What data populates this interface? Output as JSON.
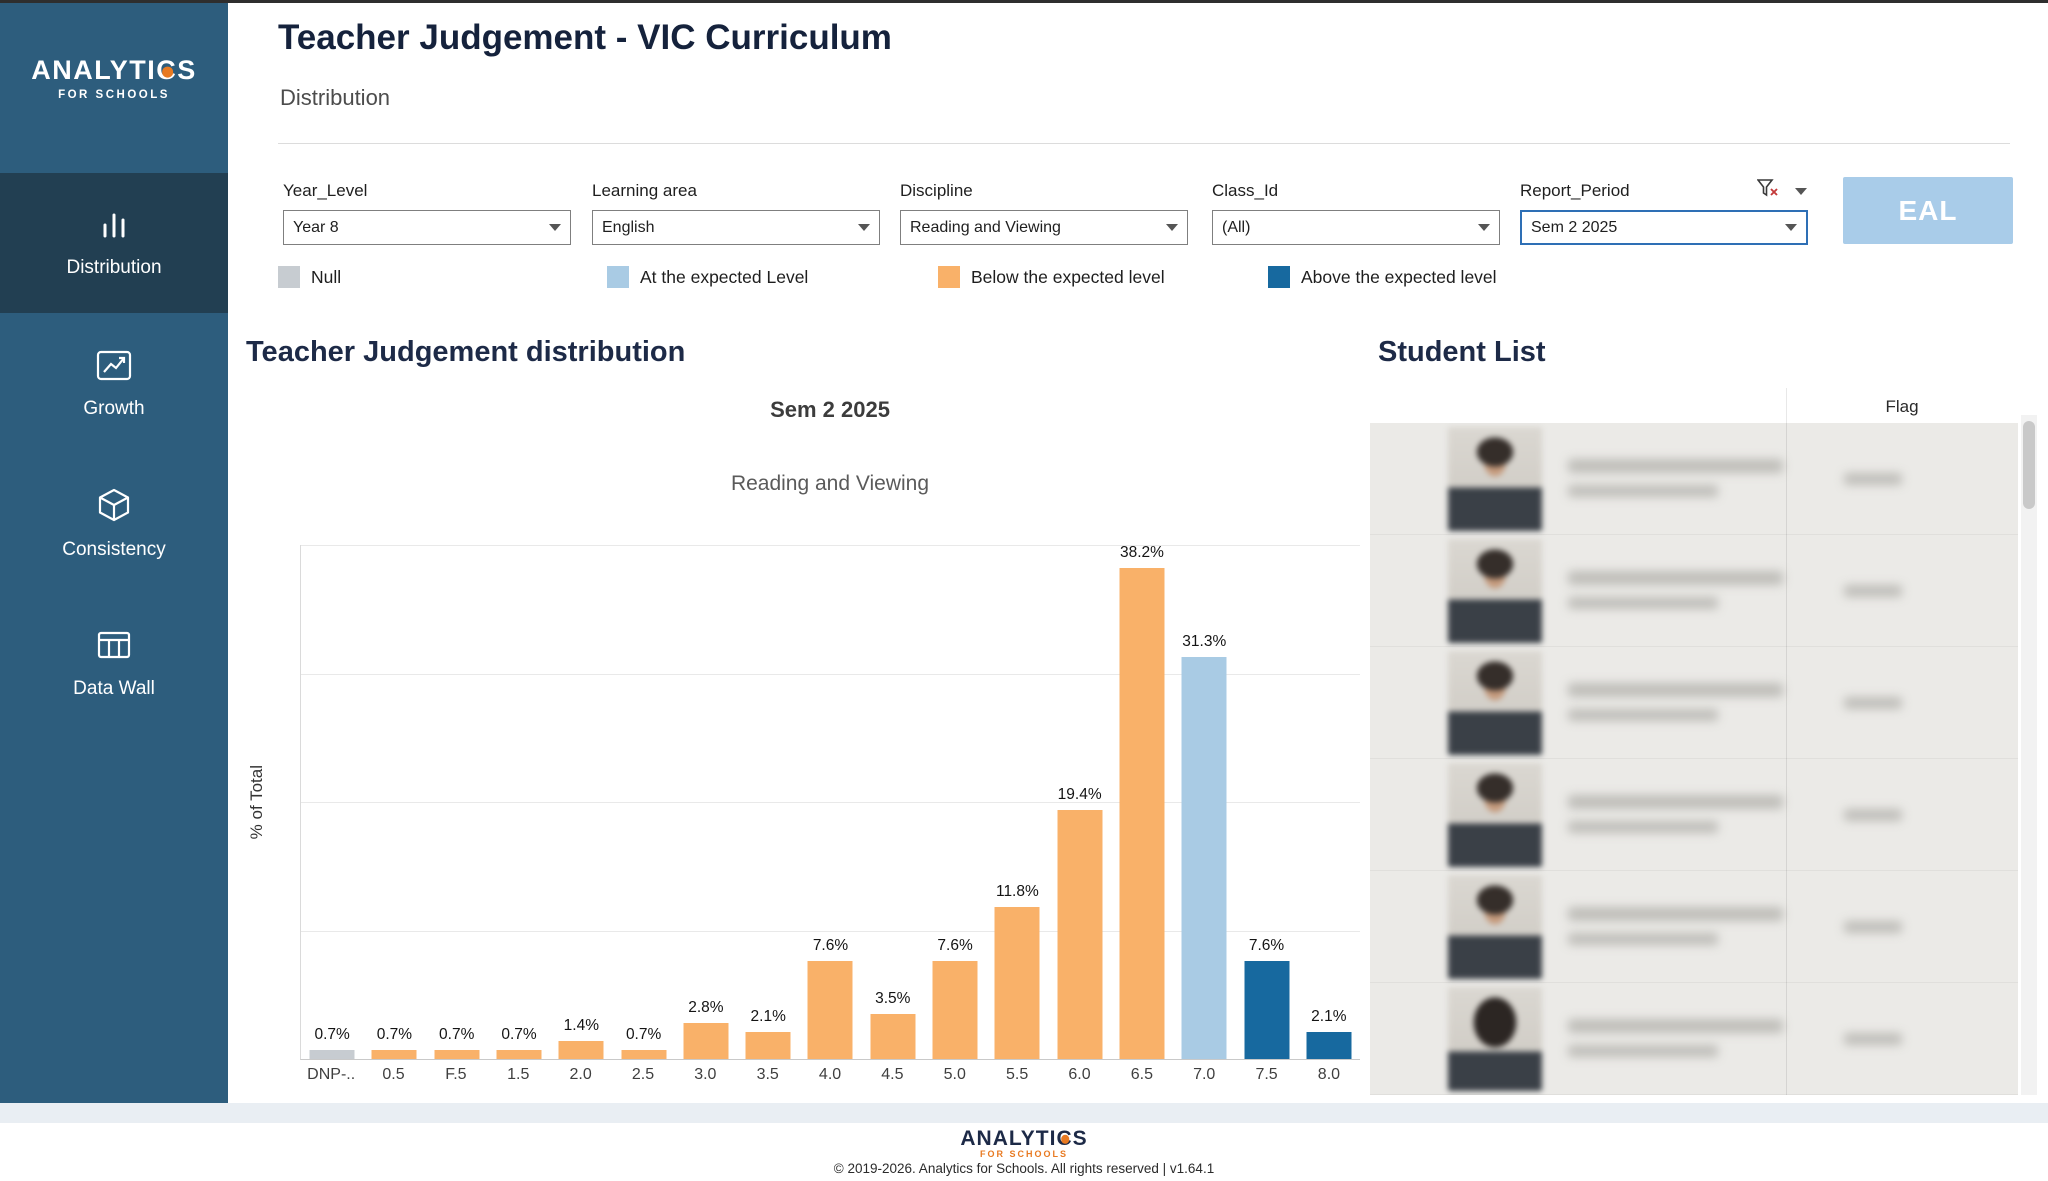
{
  "sidebar": {
    "logo": {
      "part1": "ANALYTI",
      "c_letter": "C",
      "part2": "S",
      "tagline": "FOR SCHOOLS"
    },
    "items": [
      {
        "label": "Distribution",
        "icon": "bar-chart-icon",
        "active": true
      },
      {
        "label": "Growth",
        "icon": "line-chart-icon",
        "active": false
      },
      {
        "label": "Consistency",
        "icon": "cube-icon",
        "active": false
      },
      {
        "label": "Data Wall",
        "icon": "table-grid-icon",
        "active": false
      }
    ]
  },
  "header": {
    "title": "Teacher Judgement - VIC Curriculum",
    "subtitle": "Distribution"
  },
  "filters": [
    {
      "label": "Year_Level",
      "value": "Year 8",
      "highlighted": false
    },
    {
      "label": "Learning area",
      "value": "English",
      "highlighted": false
    },
    {
      "label": "Discipline",
      "value": "Reading and Viewing",
      "highlighted": false
    },
    {
      "label": "Class_Id",
      "value": "(All)",
      "highlighted": false
    },
    {
      "label": "Report_Period",
      "value": "Sem 2 2025",
      "highlighted": true
    }
  ],
  "eal_button": {
    "label": "EAL",
    "color": "#a9cce9"
  },
  "legend": [
    {
      "key": "null",
      "label": "Null",
      "color": "#c7ccd1"
    },
    {
      "key": "at",
      "label": "At the expected Level",
      "color": "#a9cbe4"
    },
    {
      "key": "below",
      "label": "Below the expected level",
      "color": "#f9b169"
    },
    {
      "key": "above",
      "label": "Above the expected level",
      "color": "#17699f"
    }
  ],
  "chart_data": {
    "type": "bar",
    "title": "Teacher Judgement distribution",
    "subtitle1": "Sem 2 2025",
    "subtitle2": "Reading and Viewing",
    "ylabel": "% of Total",
    "ylim": [
      0,
      40
    ],
    "grid": true,
    "categories": [
      "DNP-..",
      "0.5",
      "F.5",
      "1.5",
      "2.0",
      "2.5",
      "3.0",
      "3.5",
      "4.0",
      "4.5",
      "5.0",
      "5.5",
      "6.0",
      "6.5",
      "7.0",
      "7.5",
      "8.0"
    ],
    "values": [
      0.7,
      0.7,
      0.7,
      0.7,
      1.4,
      0.7,
      2.8,
      2.1,
      7.6,
      3.5,
      7.6,
      11.8,
      19.4,
      38.2,
      31.3,
      7.6,
      2.1
    ],
    "labels": [
      "0.7%",
      "0.7%",
      "0.7%",
      "0.7%",
      "1.4%",
      "0.7%",
      "2.8%",
      "2.1%",
      "7.6%",
      "3.5%",
      "7.6%",
      "11.8%",
      "19.4%",
      "38.2%",
      "31.3%",
      "7.6%",
      "2.1%"
    ],
    "colors": [
      "null",
      "below",
      "below",
      "below",
      "below",
      "below",
      "below",
      "below",
      "below",
      "below",
      "below",
      "below",
      "below",
      "below",
      "at",
      "above",
      "above"
    ]
  },
  "student_list": {
    "title": "Student List",
    "flag_header": "Flag",
    "row_count": 6
  },
  "footer": {
    "copyright": "© 2019-2026. Analytics for Schools. All rights reserved | v1.64.1"
  }
}
